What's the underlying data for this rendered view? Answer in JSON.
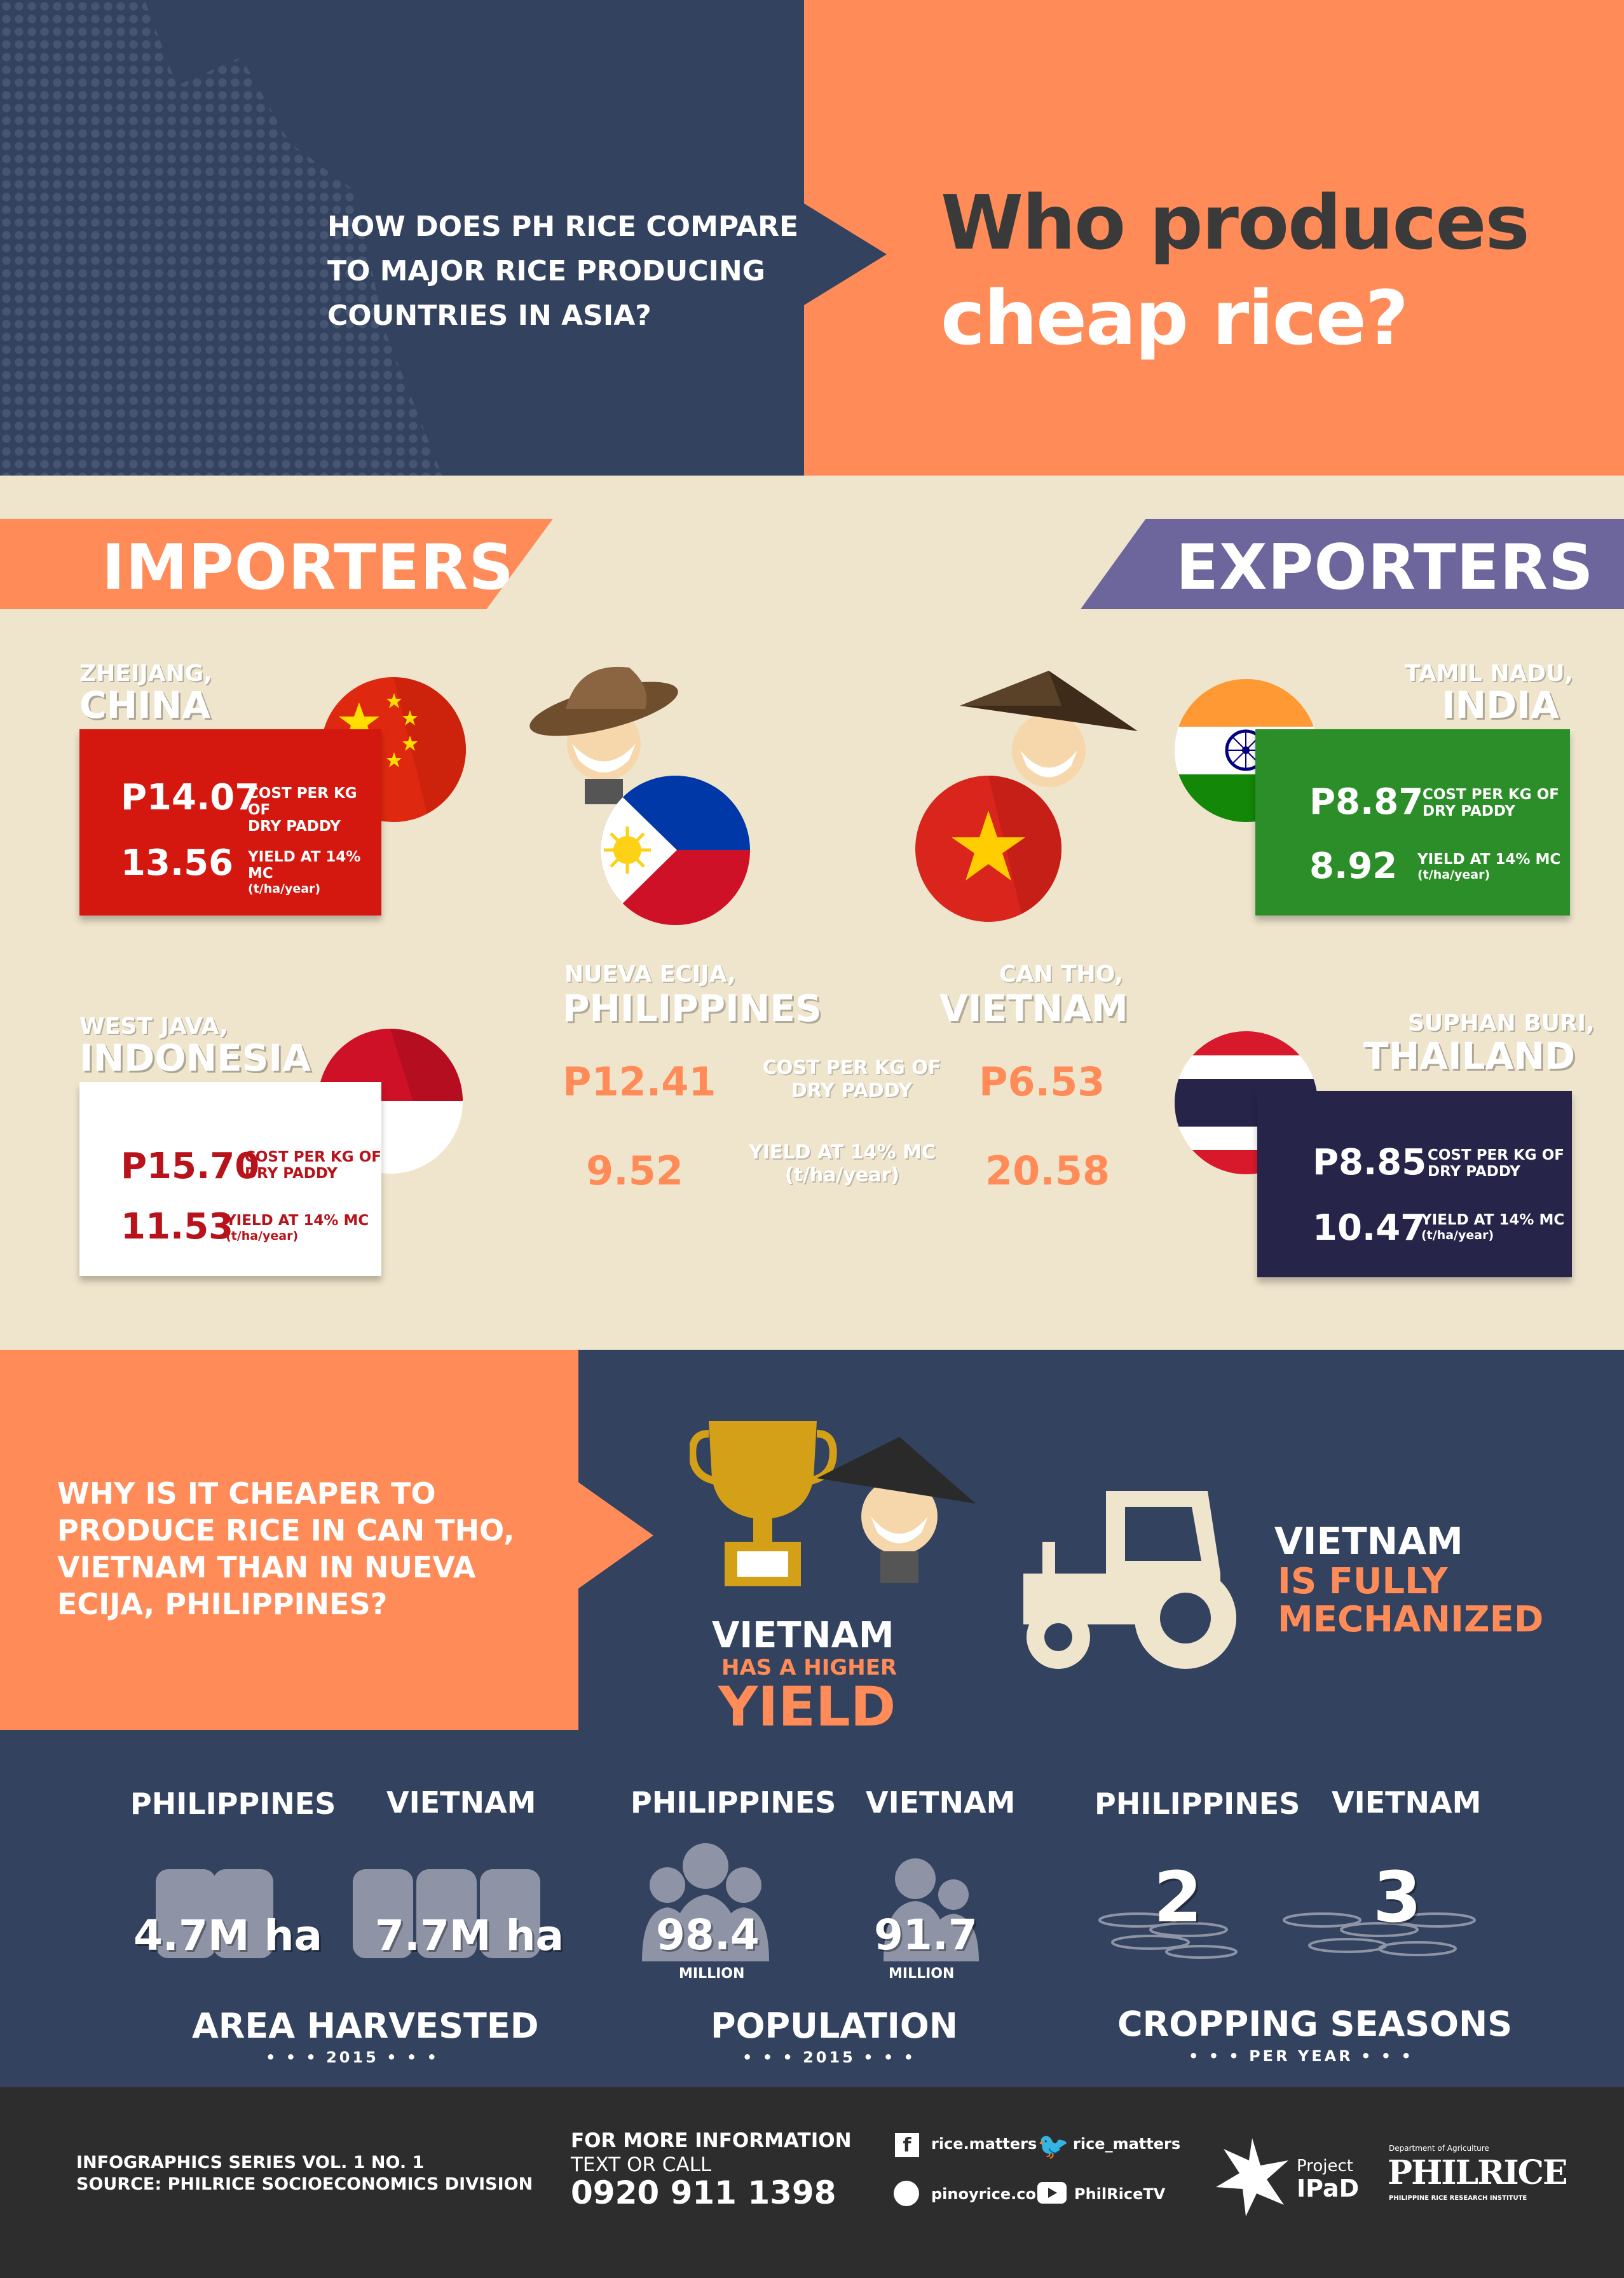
{
  "header": {
    "question": "HOW DOES PH RICE COMPARE TO MAJOR RICE PRODUCING COUNTRIES IN ASIA?",
    "title_line1": "Who produces",
    "title_line2": "cheap rice?"
  },
  "ribbons": {
    "importers": "IMPORTERS",
    "exporters": "EXPORTERS"
  },
  "cards": {
    "china": {
      "region": "ZHEIJANG,",
      "country": "CHINA",
      "price": "P14.07",
      "price_label_1": "COST PER KG OF",
      "price_label_2": "DRY PADDY",
      "yield": "13.56",
      "yield_label_1": "YIELD AT 14% MC",
      "yield_label_2": "(t/ha/year)",
      "color": "#d4180f"
    },
    "indonesia": {
      "region": "WEST JAVA,",
      "country": "INDONESIA",
      "price": "P15.70",
      "price_label_1": "COST PER KG OF",
      "price_label_2": "DRY PADDY",
      "yield": "11.53",
      "yield_label_1": "YIELD AT 14% MC",
      "yield_label_2": "(t/ha/year)",
      "color": "#ffffff"
    },
    "india": {
      "region": "TAMIL NADU,",
      "country": "INDIA",
      "price": "P8.87",
      "price_label_1": "COST PER KG OF",
      "price_label_2": "DRY PADDY",
      "yield": "8.92",
      "yield_label_1": "YIELD AT 14% MC",
      "yield_label_2": "(t/ha/year)",
      "color": "#2c8e28"
    },
    "thailand": {
      "region": "SUPHAN BURI,",
      "country": "THAILAND",
      "price": "P8.85",
      "price_label_1": "COST PER KG OF",
      "price_label_2": "DRY PADDY",
      "yield": "10.47",
      "yield_label_1": "YIELD AT 14% MC",
      "yield_label_2": "(t/ha/year)",
      "color": "#262449"
    }
  },
  "compare": {
    "ph_region": "NUEVA ECIJA,",
    "ph_country": "PHILIPPINES",
    "vn_region": "CAN THO,",
    "vn_country": "VIETNAM",
    "ph_price": "P12.41",
    "vn_price": "P6.53",
    "price_label_1": "COST PER KG OF",
    "price_label_2": "DRY PADDY",
    "ph_yield": "9.52",
    "vn_yield": "20.58",
    "yield_label_1": "YIELD AT 14% MC",
    "yield_label_2": "(t/ha/year)"
  },
  "why": {
    "question": "WHY IS IT CHEAPER TO PRODUCE RICE IN CAN THO, VIETNAM THAN IN NUEVA ECIJA, PHILIPPINES?",
    "yield_line1": "VIETNAM",
    "yield_line2": "HAS A HIGHER",
    "yield_line3": "YIELD",
    "mech_line1": "VIETNAM",
    "mech_line2": "IS FULLY",
    "mech_line3": "MECHANIZED"
  },
  "stats": {
    "area": {
      "ph_label": "PHILIPPINES",
      "vn_label": "VIETNAM",
      "ph_value": "4.7M ha",
      "vn_value": "7.7M ha",
      "title": "AREA HARVESTED",
      "sub": "• • • 2015 • • •"
    },
    "population": {
      "ph_label": "PHILIPPINES",
      "vn_label": "VIETNAM",
      "ph_value": "98.4",
      "vn_value": "91.7",
      "unit": "MILLION",
      "title": "POPULATION",
      "sub": "• • • 2015 • • •"
    },
    "seasons": {
      "ph_label": "PHILIPPINES",
      "vn_label": "VIETNAM",
      "ph_value": "2",
      "vn_value": "3",
      "title": "CROPPING SEASONS",
      "sub": "• • •  PER YEAR  • • •"
    }
  },
  "footer": {
    "series": "INFOGRAPHICS SERIES VOL. 1 NO. 1",
    "source": "SOURCE:  PHILRICE SOCIOECONOMICS DIVISION",
    "info_1": "FOR MORE INFORMATION",
    "info_2": "TEXT OR CALL",
    "phone": "0920 911 1398",
    "facebook": "rice.matters",
    "twitter": "rice_matters",
    "website": "pinoyrice.com",
    "youtube": "PhilRiceTV",
    "project_1": "Project",
    "project_2": "IPaD",
    "dept": "Department of Agriculture",
    "philrice": "PHILRICE",
    "philrice_full": "PHILIPPINE RICE RESEARCH INSTITUTE"
  }
}
